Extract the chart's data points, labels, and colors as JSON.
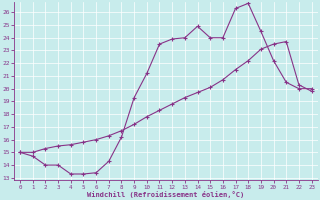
{
  "xlabel": "Windchill (Refroidissement éolien,°C)",
  "background_color": "#c8ecec",
  "line_color": "#883388",
  "xlim": [
    -0.5,
    23.5
  ],
  "ylim": [
    12.8,
    26.8
  ],
  "yticks": [
    13,
    14,
    15,
    16,
    17,
    18,
    19,
    20,
    21,
    22,
    23,
    24,
    25,
    26
  ],
  "xticks": [
    0,
    1,
    2,
    3,
    4,
    5,
    6,
    7,
    8,
    9,
    10,
    11,
    12,
    13,
    14,
    15,
    16,
    17,
    18,
    19,
    20,
    21,
    22,
    23
  ],
  "line1_x": [
    0,
    1,
    2,
    3,
    4,
    5,
    6,
    7,
    8,
    9,
    10,
    11,
    12,
    13,
    14,
    15,
    16,
    17,
    18,
    19,
    20,
    21,
    22,
    23
  ],
  "line1_y": [
    15.0,
    14.7,
    14.0,
    14.0,
    13.3,
    13.3,
    13.4,
    14.3,
    16.2,
    19.3,
    21.2,
    23.5,
    23.9,
    24.0,
    24.9,
    24.0,
    24.0,
    26.3,
    26.7,
    24.5,
    22.2,
    20.5,
    20.0,
    20.0
  ],
  "line2_x": [
    0,
    1,
    2,
    3,
    4,
    5,
    6,
    7,
    8,
    9,
    10,
    11,
    12,
    13,
    14,
    15,
    16,
    17,
    18,
    19,
    20,
    21,
    22,
    23
  ],
  "line2_y": [
    15.0,
    15.0,
    15.3,
    15.5,
    15.6,
    15.8,
    16.0,
    16.3,
    16.7,
    17.2,
    17.8,
    18.3,
    18.8,
    19.3,
    19.7,
    20.1,
    20.7,
    21.5,
    22.2,
    23.1,
    23.5,
    23.7,
    20.3,
    19.8
  ]
}
